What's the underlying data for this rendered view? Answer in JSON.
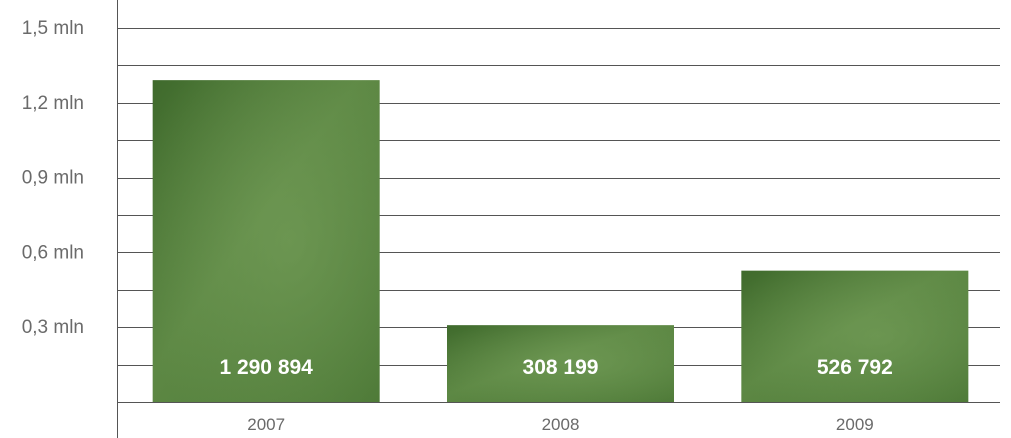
{
  "chart_data": {
    "type": "bar",
    "categories": [
      "2007",
      "2008",
      "2009"
    ],
    "values": [
      1290894,
      308199,
      526792
    ],
    "value_labels": [
      "1 290 894",
      "308 199",
      "526 792"
    ],
    "yticks": [
      {
        "value": 300000,
        "label": "0,3 mln"
      },
      {
        "value": 600000,
        "label": "0,6 mln"
      },
      {
        "value": 900000,
        "label": "0,9 mln"
      },
      {
        "value": 1200000,
        "label": "1,2 mln"
      },
      {
        "value": 1500000,
        "label": "1,5 mln"
      }
    ],
    "ylim": [
      0,
      1500000
    ],
    "grid_step": 150000,
    "grid": true,
    "title": "",
    "xlabel": "",
    "ylabel": "",
    "colors": {
      "bar_dark": "#3f6a2c",
      "bar_mid": "#557f3c",
      "bar_light": "#6b944e",
      "grid": "#555555",
      "axis": "#555555",
      "tick_text": "#6a6a6a",
      "label_text": "#ffffff"
    }
  }
}
